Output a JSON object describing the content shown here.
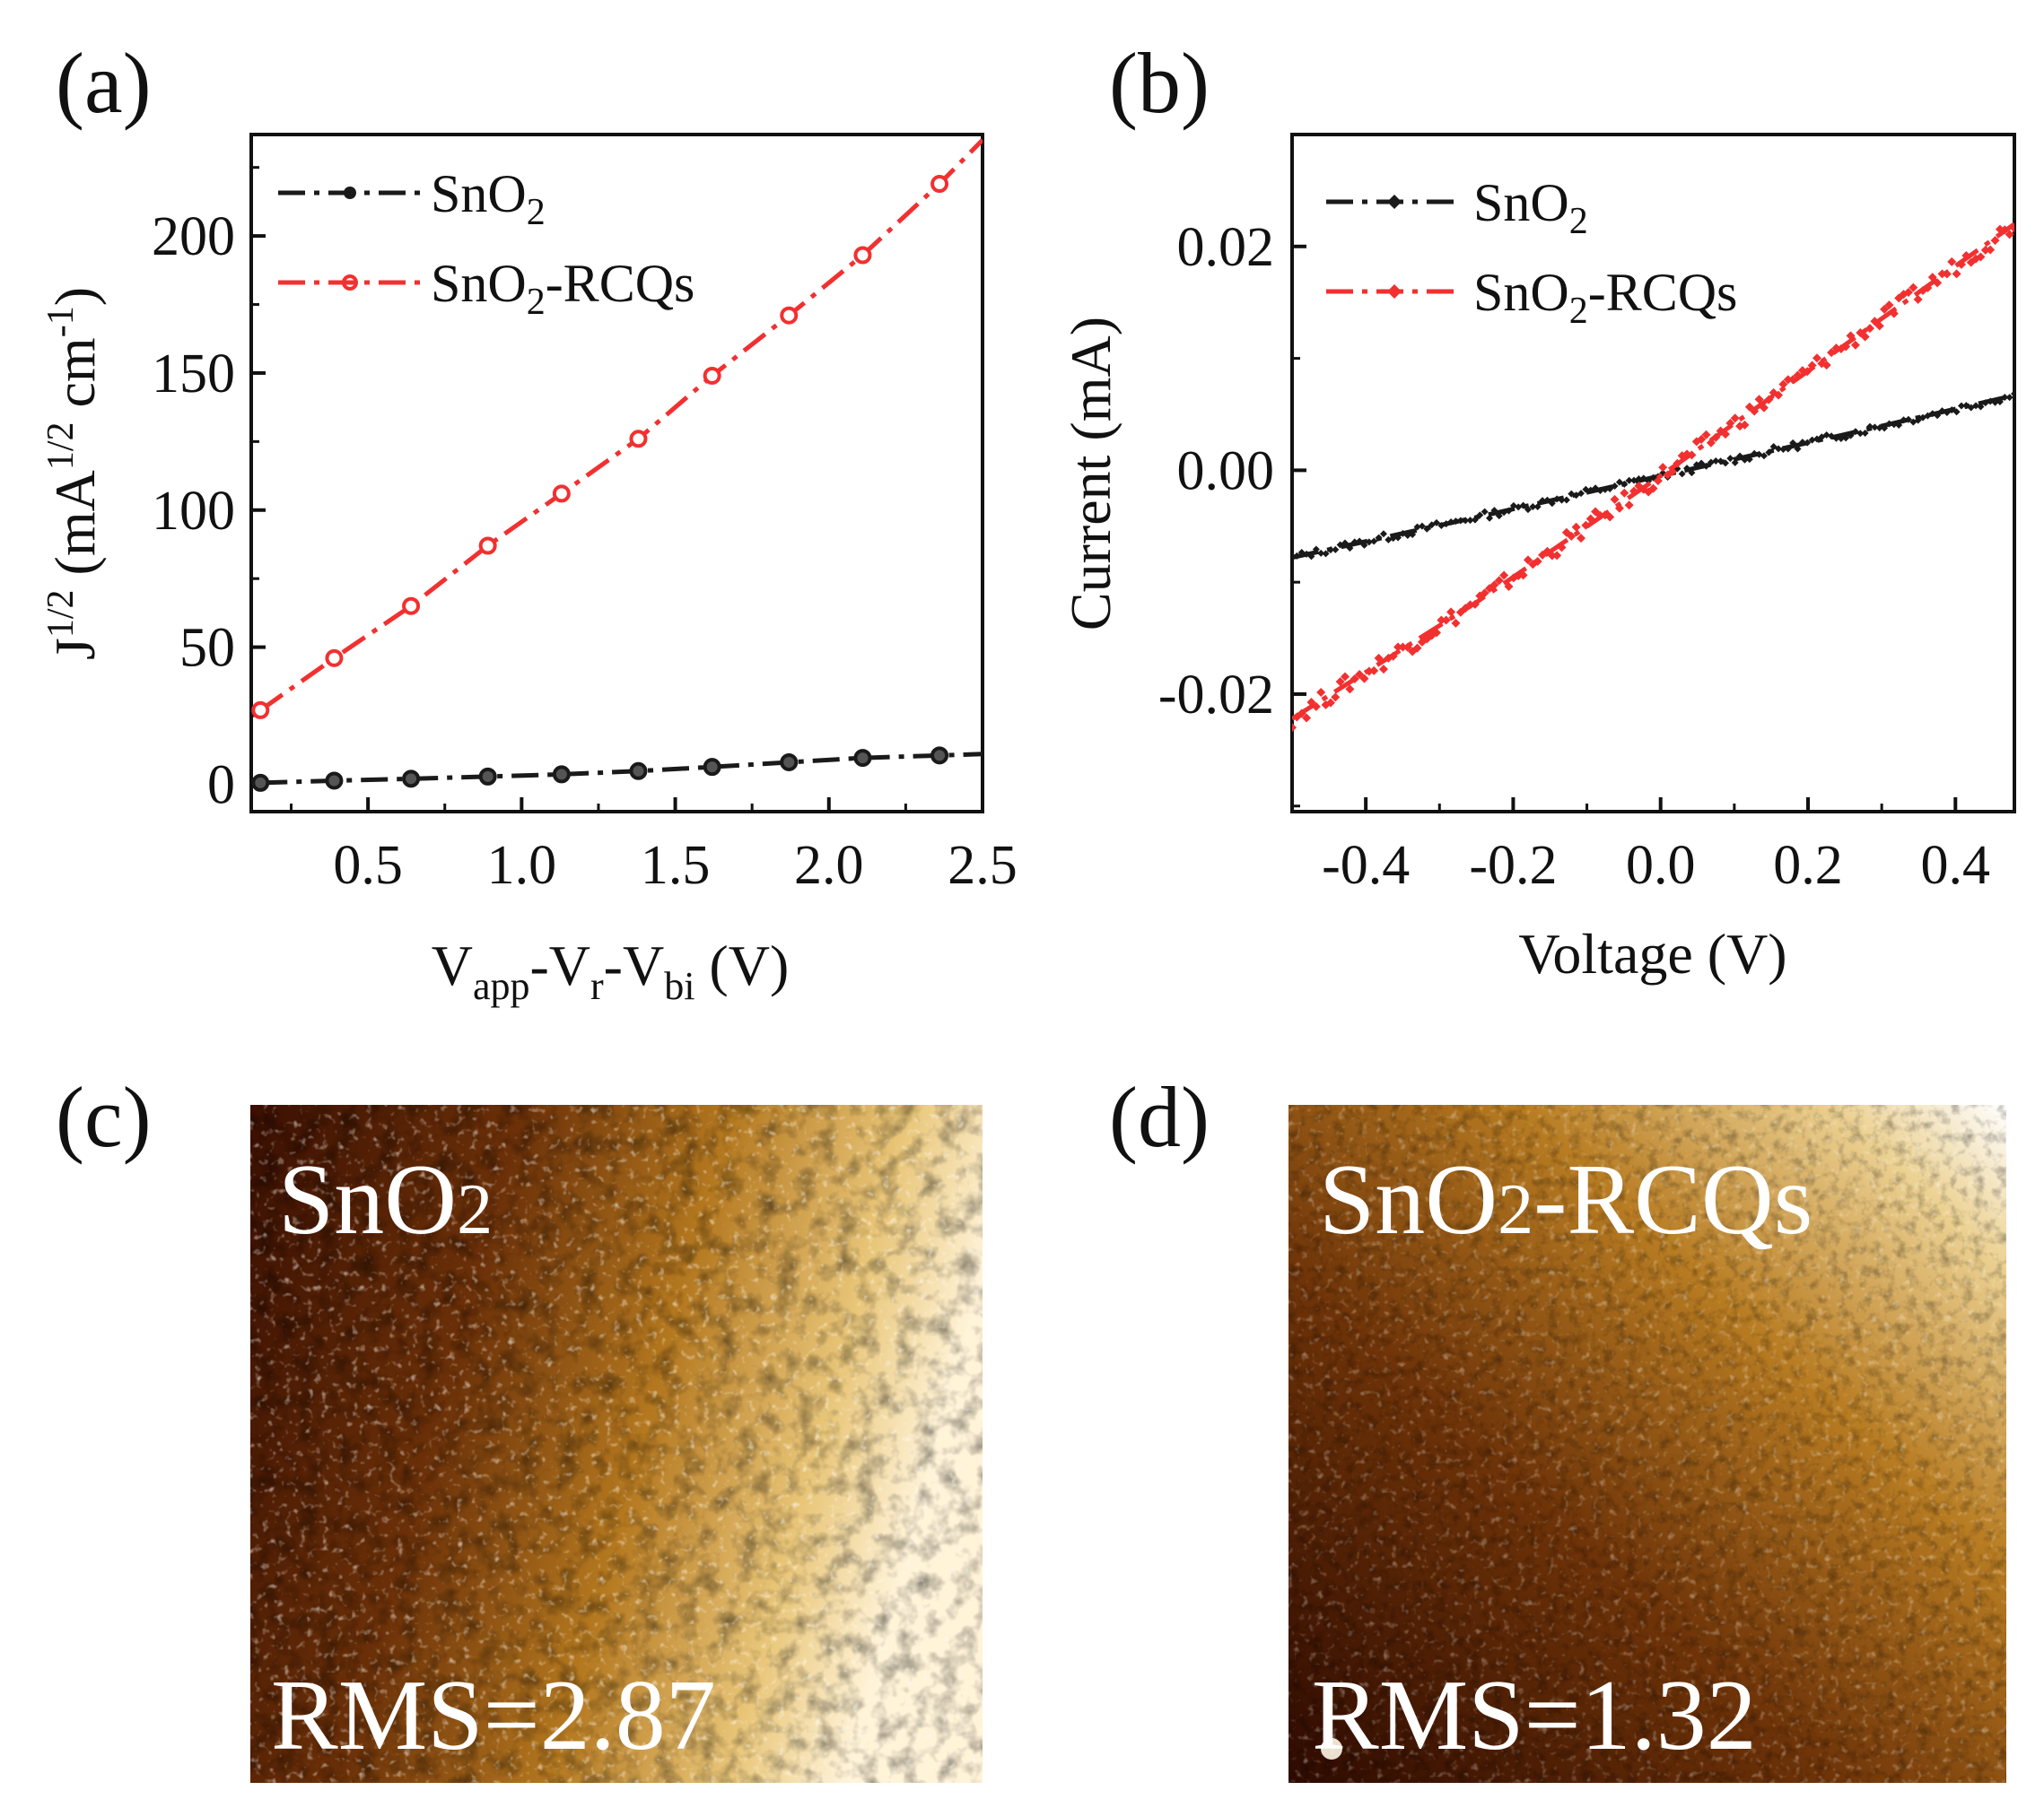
{
  "panels": {
    "a": "(a)",
    "b": "(b)",
    "c": "(c)",
    "d": "(d)"
  },
  "chart_data": [
    {
      "panel": "a",
      "type": "line",
      "xlabel": "V",
      "xlabel_parts": {
        "v1": "V",
        "s1": "app",
        "mid1": "-V",
        "s2": "r",
        "mid2": "-V",
        "s3": "bi",
        "end": " (V)"
      },
      "ylabel_parts": {
        "j": "J",
        "sup1": "1/2",
        "unit_a": " (mA",
        "sup2": "1/2",
        "unit_b": " cm",
        "sup3": "-1",
        "close": ")"
      },
      "xlim": [
        0.12,
        2.5
      ],
      "ylim": [
        -10,
        237
      ],
      "x_ticks": [
        0.5,
        1.0,
        1.5,
        2.0,
        2.5
      ],
      "x_tick_labels": [
        "0.5",
        "1.0",
        "1.5",
        "2.0",
        "2.5"
      ],
      "y_ticks": [
        0,
        50,
        100,
        150,
        200
      ],
      "y_tick_labels": [
        "0",
        "50",
        "100",
        "150",
        "200"
      ],
      "legend_position": "top-left",
      "series": [
        {
          "name": "SnO",
          "name_sub": "2",
          "name_suffix": "",
          "color": "#1a1a1a",
          "x": [
            0.15,
            0.39,
            0.64,
            0.89,
            1.13,
            1.38,
            1.62,
            1.87,
            2.11,
            2.36,
            2.5
          ],
          "y": [
            0.5,
            1.3,
            2.0,
            2.8,
            3.6,
            4.8,
            6.3,
            8.0,
            9.6,
            10.5,
            11.0
          ],
          "markers": [
            0.15,
            0.39,
            0.64,
            0.89,
            1.13,
            1.38,
            1.62,
            1.87,
            2.11,
            2.36
          ]
        },
        {
          "name": "SnO",
          "name_sub": "2",
          "name_suffix": "-RCQs",
          "color": "#f23030",
          "x": [
            0.15,
            0.39,
            0.64,
            0.89,
            1.13,
            1.38,
            1.62,
            1.87,
            2.11,
            2.36,
            2.5
          ],
          "y": [
            27,
            46,
            65,
            87,
            106,
            126,
            149,
            171,
            193,
            219,
            235
          ],
          "markers": [
            0.15,
            0.39,
            0.64,
            0.89,
            1.13,
            1.38,
            1.62,
            1.87,
            2.11,
            2.36
          ]
        }
      ]
    },
    {
      "panel": "b",
      "type": "line",
      "xlabel": "Voltage (V)",
      "ylabel": "Current (mA)",
      "xlim": [
        -0.5,
        0.48
      ],
      "ylim": [
        -0.0305,
        0.03
      ],
      "x_ticks": [
        -0.4,
        -0.2,
        0.0,
        0.2,
        0.4
      ],
      "x_tick_labels": [
        "-0.4",
        "-0.2",
        "0.0",
        "0.2",
        "0.4"
      ],
      "y_ticks": [
        -0.02,
        0.0,
        0.02
      ],
      "y_tick_labels": [
        "-0.02",
        "0.00",
        "0.02"
      ],
      "legend_position": "top-left",
      "series": [
        {
          "name": "SnO",
          "name_sub": "2",
          "name_suffix": "",
          "color": "#1a1a1a",
          "x": [
            -0.5,
            -0.25,
            0.0,
            0.25,
            0.48
          ],
          "y": [
            -0.0078,
            -0.0042,
            -0.0005,
            0.0032,
            0.0067
          ]
        },
        {
          "name": "SnO",
          "name_sub": "2",
          "name_suffix": "-RCQs",
          "color": "#f23030",
          "x": [
            -0.5,
            -0.25,
            0.0,
            0.25,
            0.48
          ],
          "y": [
            -0.0222,
            -0.0118,
            -0.0005,
            0.0112,
            0.022
          ]
        }
      ]
    }
  ],
  "afm": [
    {
      "panel": "c",
      "label": "SnO",
      "label_sub": "2",
      "label_suffix": "",
      "rms": "RMS=2.87"
    },
    {
      "panel": "d",
      "label": "SnO",
      "label_sub": "2",
      "label_suffix": "-RCQs",
      "rms": "RMS=1.32"
    }
  ],
  "colors": {
    "afm_dark": "#3a0f02",
    "afm_mid": "#a8661a",
    "afm_light": "#f0d69a",
    "afm_white": "#fff7e6"
  }
}
